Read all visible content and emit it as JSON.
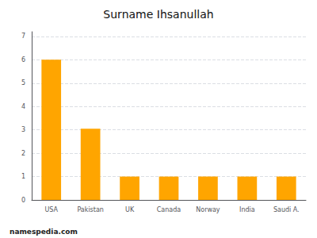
{
  "chart_data": {
    "type": "bar",
    "title": "Surname Ihsanullah",
    "categories": [
      "USA",
      "Pakistan",
      "UK",
      "Canada",
      "Norway",
      "India",
      "Saudi A."
    ],
    "values": [
      6,
      3.05,
      1,
      1,
      1,
      1,
      1
    ],
    "color": "#FFA500",
    "ylim": [
      0,
      7.2
    ],
    "yticks": [
      0,
      1,
      2,
      3,
      4,
      5,
      6,
      7
    ],
    "grid": true,
    "annotations": [
      "namespedia.com"
    ]
  }
}
